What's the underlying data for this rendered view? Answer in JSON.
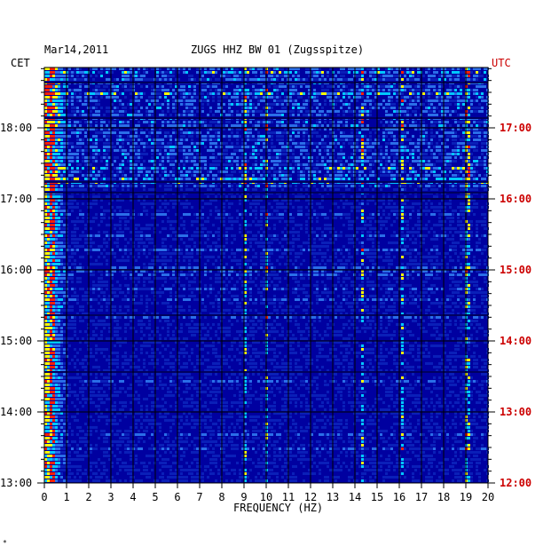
{
  "header": {
    "date": "Mar14,2011",
    "title": "ZUGS HHZ BW 01 (Zugsspitze)",
    "left_tz": "CET",
    "right_tz": "UTC"
  },
  "footer": {
    "mark": "*"
  },
  "colors": {
    "background": "#0000a0",
    "low": "#0a1fb8",
    "mid": "#2a6ee8",
    "high": "#00c8ff",
    "hot": "#ffff00",
    "peak": "#ff2000",
    "utc_label": "#cc0000",
    "cet_label": "#000000"
  },
  "chart_data": {
    "type": "heatmap",
    "title": "ZUGS HHZ BW 01 (Zugsspitze)",
    "subtitle": "Mar14,2011",
    "xlabel": "FREQUENCY (HZ)",
    "xlim": [
      0,
      20
    ],
    "x_ticks": [
      "0",
      "1",
      "2",
      "3",
      "4",
      "5",
      "6",
      "7",
      "8",
      "9",
      "10",
      "11",
      "12",
      "13",
      "14",
      "15",
      "16",
      "17",
      "18",
      "19",
      "20"
    ],
    "y_left_label": "CET",
    "y_right_label": "UTC",
    "y_left_ticks": [
      "18:00",
      "17:00",
      "16:00",
      "15:00",
      "14:00",
      "13:00"
    ],
    "y_right_ticks": [
      "17:00",
      "16:00",
      "15:00",
      "14:00",
      "13:00",
      "12:00"
    ],
    "ylim_cet": [
      "13:00",
      "18:50"
    ],
    "grid": true,
    "notable_bands_hz": [
      0.3,
      9.0,
      10.0,
      14.3,
      16.1,
      19.0
    ]
  }
}
